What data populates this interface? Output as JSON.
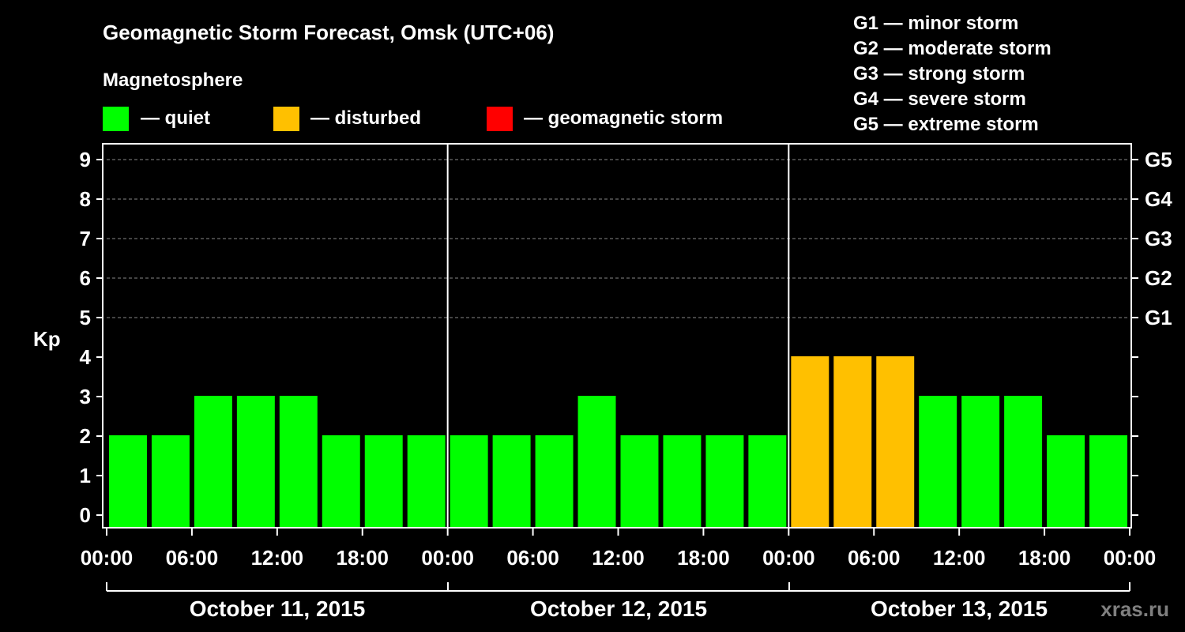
{
  "chart_data": {
    "type": "bar",
    "title": "Geomagnetic Storm Forecast, Omsk (UTC+06)",
    "ylabel": "Kp",
    "ylim": [
      0,
      9
    ],
    "yticks": [
      "0",
      "1",
      "2",
      "3",
      "4",
      "5",
      "6",
      "7",
      "8",
      "9"
    ],
    "right_axis_labels": [
      {
        "kp": 5,
        "label": "G1"
      },
      {
        "kp": 6,
        "label": "G2"
      },
      {
        "kp": 7,
        "label": "G3"
      },
      {
        "kp": 8,
        "label": "G4"
      },
      {
        "kp": 9,
        "label": "G5"
      }
    ],
    "legend_title": "Magnetosphere",
    "legend": [
      {
        "label": "— quiet",
        "color": "#00ff00"
      },
      {
        "label": "— disturbed",
        "color": "#ffc000"
      },
      {
        "label": "— geomagnetic storm",
        "color": "#ff0000"
      }
    ],
    "storm_scale": [
      "G1 — minor storm",
      "G2 — moderate storm",
      "G3 — strong storm",
      "G4 — severe storm",
      "G5 — extreme storm"
    ],
    "x_tick_labels": [
      "00:00",
      "06:00",
      "12:00",
      "18:00",
      "00:00",
      "06:00",
      "12:00",
      "18:00",
      "00:00",
      "06:00",
      "12:00",
      "18:00",
      "00:00"
    ],
    "days": [
      "October 11, 2015",
      "October 12, 2015",
      "October 13, 2015"
    ],
    "values": [
      2,
      2,
      3,
      3,
      3,
      2,
      2,
      2,
      2,
      2,
      2,
      3,
      2,
      2,
      2,
      2,
      4,
      4,
      4,
      3,
      3,
      3,
      2,
      2
    ],
    "status": [
      "quiet",
      "quiet",
      "quiet",
      "quiet",
      "quiet",
      "quiet",
      "quiet",
      "quiet",
      "quiet",
      "quiet",
      "quiet",
      "quiet",
      "quiet",
      "quiet",
      "quiet",
      "quiet",
      "disturbed",
      "disturbed",
      "disturbed",
      "quiet",
      "quiet",
      "quiet",
      "quiet",
      "quiet"
    ]
  },
  "colors": {
    "quiet": "#00ff00",
    "disturbed": "#ffc000",
    "storm": "#ff0000",
    "grid": "#888888"
  },
  "watermark": "xras.ru"
}
